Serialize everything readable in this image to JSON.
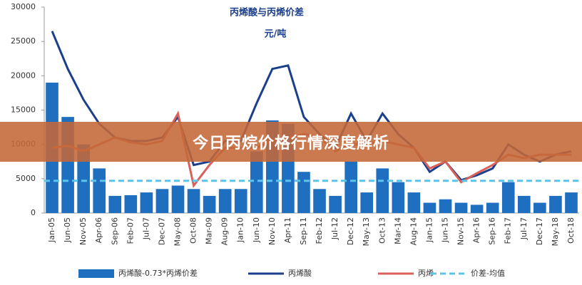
{
  "chart_data": {
    "type": "bar-line",
    "title": "丙烯酸与丙烯价差",
    "subtitle": "元/吨",
    "categories": [
      "Jan-05",
      "Jun-05",
      "Nov-05",
      "Apr-06",
      "Sep-06",
      "Feb-07",
      "Jul-07",
      "Dec-07",
      "May-08",
      "Oct-08",
      "Mar-09",
      "Aug-09",
      "Jan-10",
      "Jun-10",
      "Nov-10",
      "Apr-11",
      "Sep-11",
      "Feb-12",
      "Jul-12",
      "Dec-12",
      "May-13",
      "Oct-13",
      "Mar-14",
      "Aug-14",
      "Jan-15",
      "Jun-15",
      "Nov-15",
      "Apr-16",
      "Sep-16",
      "Feb-17",
      "Jul-17",
      "Dec-17",
      "May-18",
      "Oct-18"
    ],
    "series": [
      {
        "name": "丙烯酸-0.73*丙烯价差",
        "kind": "bar",
        "color": "#1f6fc0",
        "values": [
          19000,
          14000,
          10000,
          6500,
          2500,
          2600,
          3000,
          3500,
          4000,
          3500,
          2500,
          3500,
          3500,
          9000,
          13500,
          13000,
          6000,
          3500,
          2500,
          7500,
          3000,
          6500,
          4500,
          3000,
          1500,
          2000,
          1500,
          1200,
          1500,
          4500,
          2500,
          1500,
          2500,
          3000
        ]
      },
      {
        "name": "丙烯酸",
        "kind": "line",
        "color": "#1c3f8c",
        "values": [
          26500,
          21000,
          16500,
          13000,
          11000,
          10500,
          10500,
          11000,
          14000,
          7000,
          7500,
          10500,
          10500,
          16000,
          21000,
          21500,
          14000,
          11500,
          9500,
          14500,
          10500,
          14500,
          11500,
          9500,
          6000,
          7500,
          4800,
          5500,
          6500,
          10000,
          8500,
          7500,
          8500,
          9000
        ]
      },
      {
        "name": "丙烯",
        "kind": "line",
        "color": "#d9615a",
        "values": [
          9500,
          9800,
          9000,
          10000,
          11000,
          10300,
          10000,
          10500,
          14500,
          4000,
          7000,
          9500,
          9500,
          9500,
          10500,
          11000,
          11500,
          11000,
          9000,
          10000,
          10000,
          10500,
          10000,
          9500,
          6500,
          7500,
          4500,
          5800,
          7000,
          8500,
          8000,
          8500,
          8500,
          8500
        ]
      },
      {
        "name": "价差-均值",
        "kind": "hline",
        "color": "#5bc4e8",
        "value": 4700
      }
    ],
    "ylim": [
      0,
      30000
    ],
    "yticks": [
      0,
      5000,
      10000,
      15000,
      20000,
      25000,
      30000
    ],
    "grid": false
  },
  "banner": {
    "title": "今日丙烷价格行情深度解析"
  }
}
